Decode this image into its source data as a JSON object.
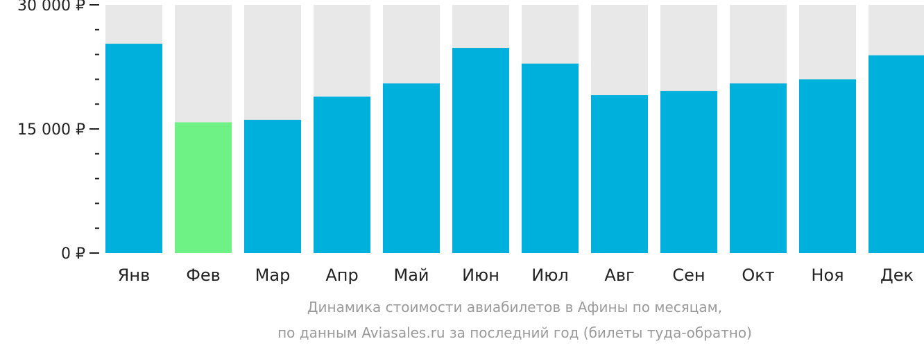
{
  "chart_data": {
    "type": "bar",
    "categories": [
      "Янв",
      "Фев",
      "Мар",
      "Апр",
      "Май",
      "Июн",
      "Июл",
      "Авг",
      "Сен",
      "Окт",
      "Ноя",
      "Дек"
    ],
    "values": [
      25300,
      15800,
      16100,
      18900,
      20500,
      24800,
      22900,
      19100,
      19600,
      20500,
      21000,
      23900
    ],
    "highlight_index": 1,
    "ylim": [
      0,
      30000
    ],
    "yticks": [
      0,
      15000,
      30000
    ],
    "ytick_labels": [
      "0 ₽",
      "15 000 ₽",
      "30 000 ₽"
    ],
    "minor_tick_step": 3000,
    "title": "",
    "xlabel": "",
    "ylabel": "",
    "caption": [
      "Динамика стоимости авиабилетов в Афины по месяцам,",
      "по данным Aviasales.ru за последний год (билеты туда-обратно)"
    ],
    "grid": false,
    "colors": {
      "bar": "#00b0dc",
      "highlight": "#6ef285",
      "track": "#e8e8e8",
      "axis": "#222222",
      "caption": "#9a9a9a"
    }
  }
}
